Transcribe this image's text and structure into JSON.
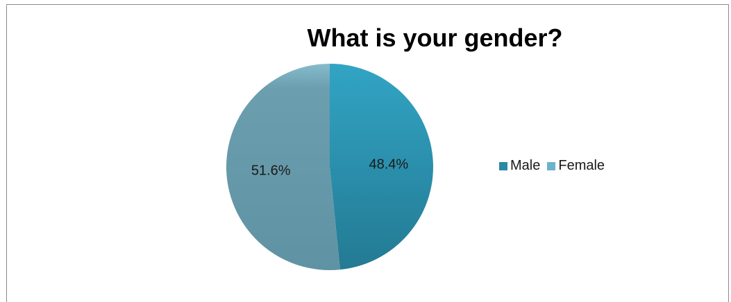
{
  "chart_data": {
    "type": "pie",
    "title": "What is your gender?",
    "categories": [
      "Male",
      "Female"
    ],
    "values": [
      48.4,
      51.6
    ],
    "labels": [
      "48.4%",
      "51.6%"
    ],
    "colors": [
      "#2a8aa4",
      "#6498a8"
    ],
    "legend_colors": [
      "#2a8aa4",
      "#6cb2cb"
    ],
    "legend_position": "right"
  }
}
